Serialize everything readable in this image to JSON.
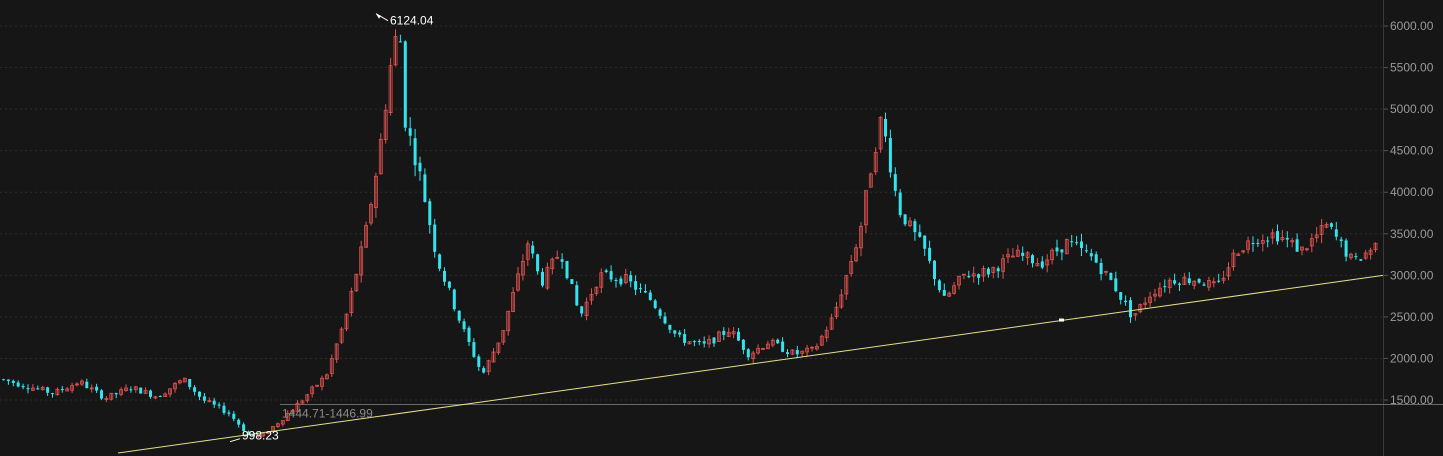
{
  "chart_data": {
    "type": "candlestick",
    "y_axis": {
      "ticks": [
        1500,
        2000,
        2500,
        3000,
        3500,
        4000,
        4500,
        5000,
        5500,
        6000
      ],
      "tick_labels": [
        "1500.00",
        "2000.00",
        "2500.00",
        "3000.00",
        "3500.00",
        "4000.00",
        "4500.00",
        "5000.00",
        "5500.00",
        "6000.00"
      ],
      "ylim": [
        950,
        6250
      ],
      "position": "right"
    },
    "grid": true,
    "colors": {
      "background": "#161616",
      "up": "#e0524f",
      "down": "#33e4ee",
      "grid": "#2c2c2c",
      "trendline": "#e6e08a",
      "refline": "#6b6b6b",
      "label": "#9a9a9a"
    },
    "annotations": {
      "high_label": "6124.04",
      "high_value": 6124.04,
      "low_label": "998.23",
      "low_value": 998.23,
      "range_label": "1444.71-1446.99",
      "range_value": 1446
    },
    "trendline": {
      "start": [
        0,
        970
      ],
      "end": [
        1,
        3000
      ]
    },
    "close_path": [
      [
        0,
        1750
      ],
      [
        0.04,
        1580
      ],
      [
        0.06,
        1720
      ],
      [
        0.08,
        1520
      ],
      [
        0.1,
        1650
      ],
      [
        0.12,
        1540
      ],
      [
        0.14,
        1750
      ],
      [
        0.155,
        1500
      ],
      [
        0.175,
        1340
      ],
      [
        0.19,
        1080
      ],
      [
        0.2,
        1060
      ],
      [
        0.215,
        1260
      ],
      [
        0.23,
        1480
      ],
      [
        0.25,
        1800
      ],
      [
        0.265,
        2500
      ],
      [
        0.28,
        3500
      ],
      [
        0.29,
        4400
      ],
      [
        0.3,
        5600
      ],
      [
        0.306,
        6050
      ],
      [
        0.31,
        4900
      ],
      [
        0.322,
        4200
      ],
      [
        0.335,
        3200
      ],
      [
        0.355,
        2350
      ],
      [
        0.37,
        1800
      ],
      [
        0.385,
        2300
      ],
      [
        0.405,
        3400
      ],
      [
        0.415,
        2900
      ],
      [
        0.43,
        3300
      ],
      [
        0.445,
        2500
      ],
      [
        0.46,
        3000
      ],
      [
        0.48,
        2950
      ],
      [
        0.5,
        2700
      ],
      [
        0.52,
        2250
      ],
      [
        0.54,
        2150
      ],
      [
        0.56,
        2350
      ],
      [
        0.575,
        2050
      ],
      [
        0.59,
        2200
      ],
      [
        0.61,
        2050
      ],
      [
        0.625,
        2100
      ],
      [
        0.64,
        2500
      ],
      [
        0.66,
        3500
      ],
      [
        0.67,
        4400
      ],
      [
        0.677,
        4900
      ],
      [
        0.69,
        3800
      ],
      [
        0.71,
        3300
      ],
      [
        0.725,
        2700
      ],
      [
        0.74,
        3000
      ],
      [
        0.76,
        3050
      ],
      [
        0.78,
        3250
      ],
      [
        0.8,
        3150
      ],
      [
        0.82,
        3400
      ],
      [
        0.84,
        3200
      ],
      [
        0.855,
        2900
      ],
      [
        0.87,
        2500
      ],
      [
        0.885,
        2800
      ],
      [
        0.9,
        2950
      ],
      [
        0.92,
        2950
      ],
      [
        0.935,
        2850
      ],
      [
        0.95,
        3300
      ],
      [
        0.965,
        3450
      ],
      [
        0.98,
        3500
      ],
      [
        1,
        3300
      ],
      [
        1.02,
        3600
      ],
      [
        1.04,
        3150
      ],
      [
        1.06,
        3400
      ]
    ]
  }
}
